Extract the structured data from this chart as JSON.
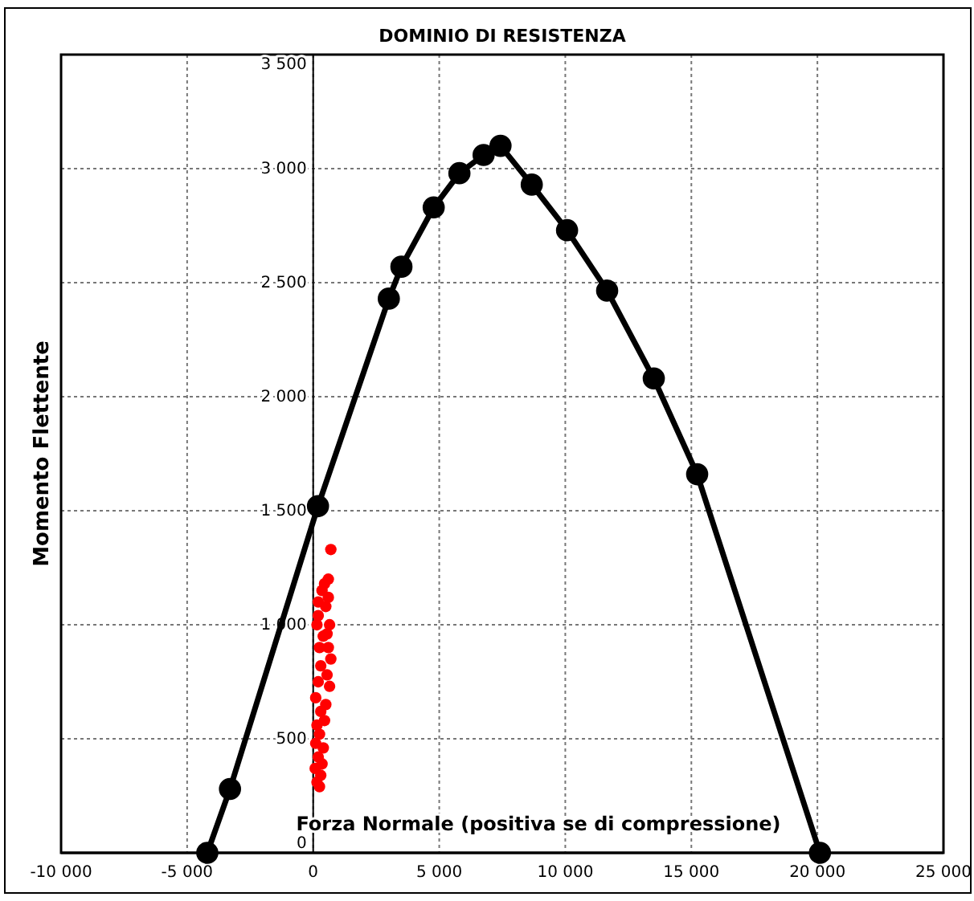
{
  "chart_data": {
    "type": "line",
    "title": "DOMINIO DI RESISTENZA",
    "xlabel": "Forza Normale  (positiva se di compressione)",
    "ylabel": "Momento Flettente",
    "xlim": [
      -10000,
      25000
    ],
    "xticks": [
      {
        "value": -10000,
        "label": "-10 000"
      },
      {
        "value": -5000,
        "label": "-5 000"
      },
      0,
      {
        "value": 5000,
        "label": "5 000"
      },
      {
        "value": 10000,
        "label": "10 000"
      },
      {
        "value": 15000,
        "label": "15 000"
      },
      {
        "value": 20000,
        "label": "20 000"
      },
      {
        "value": 25000,
        "label": "25 000"
      }
    ],
    "ylim": [
      0,
      3500
    ],
    "yticks": [
      0,
      500,
      {
        "value": 1000,
        "label": "1 000"
      },
      {
        "value": 1500,
        "label": "1 500"
      },
      {
        "value": 2000,
        "label": "2 000"
      },
      {
        "value": 2500,
        "label": "2 500"
      },
      {
        "value": 3000,
        "label": "3 000"
      },
      {
        "value": 3500,
        "label": "3 500"
      }
    ],
    "grid": true,
    "marker": "circle",
    "line_style": "solid",
    "series": [
      {
        "color": "#000000",
        "x": [
          -4200,
          -3300,
          190,
          3000,
          3500,
          4780,
          5800,
          6760,
          7430,
          8670,
          10070,
          11660,
          13510,
          15230,
          20100
        ],
        "values": [
          0,
          280,
          1520,
          2430,
          2570,
          2830,
          2980,
          3060,
          3100,
          2930,
          2730,
          2465,
          2080,
          1660,
          0
        ]
      },
      {
        "type": "scatter",
        "color": "#ff0000",
        "x": [
          700,
          600,
          450,
          350,
          200,
          500,
          650,
          150,
          400,
          600,
          250,
          700,
          300,
          550,
          650,
          200,
          100,
          500,
          300,
          150,
          450,
          250,
          100,
          400,
          200,
          350,
          80,
          300,
          150,
          250,
          600,
          200,
          550
        ],
        "values": [
          1330,
          1200,
          1180,
          1150,
          1100,
          1080,
          1000,
          1000,
          950,
          900,
          900,
          850,
          820,
          780,
          730,
          750,
          680,
          650,
          620,
          560,
          580,
          520,
          480,
          460,
          420,
          390,
          370,
          340,
          310,
          290,
          1120,
          1040,
          960
        ]
      }
    ]
  }
}
